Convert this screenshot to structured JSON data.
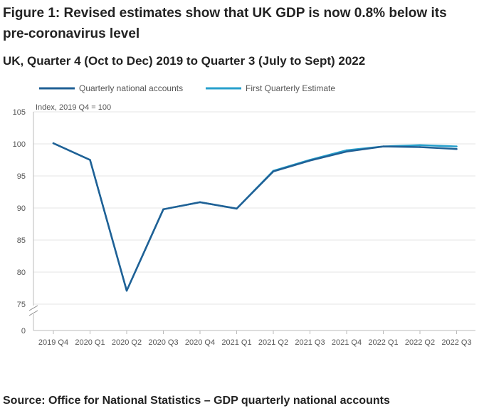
{
  "figure": {
    "title": "Figure 1: Revised estimates show that UK GDP is now 0.8% below its pre-coronavirus level",
    "subtitle": "UK, Quarter 4 (Oct to Dec) 2019 to Quarter 3 (July to Sept) 2022",
    "source": "Source: Office for National Statistics – GDP quarterly national accounts"
  },
  "chart_data": {
    "type": "line",
    "title": "Figure 1: Revised estimates show that UK GDP is now 0.8% below its pre-coronavirus level",
    "subtitle": "UK, Quarter 4 (Oct to Dec) 2019 to Quarter 3 (July to Sept) 2022",
    "ylabel": "Index, 2019 Q4 = 100",
    "xlabel": "",
    "categories": [
      "2019 Q4",
      "2020 Q1",
      "2020 Q2",
      "2020 Q3",
      "2020 Q4",
      "2021 Q1",
      "2021 Q2",
      "2021 Q3",
      "2021 Q4",
      "2022 Q1",
      "2022 Q2",
      "2022 Q3"
    ],
    "ylim": [
      75,
      105
    ],
    "yticks": [
      "105",
      "100",
      "95",
      "90",
      "85",
      "80",
      "75",
      "0"
    ],
    "axis_break": true,
    "grid": true,
    "legend_position": "top-left",
    "series": [
      {
        "name": "Quarterly national accounts",
        "color": "#206095",
        "values": [
          100.1,
          97.5,
          77.1,
          89.8,
          90.9,
          89.9,
          95.7,
          97.4,
          98.8,
          99.6,
          99.5,
          99.2
        ]
      },
      {
        "name": "First Quarterly Estimate",
        "color": "#27a0cc",
        "values": [
          100.1,
          97.5,
          77.1,
          89.8,
          90.9,
          89.9,
          95.8,
          97.5,
          99.0,
          99.6,
          99.8,
          99.6
        ]
      }
    ]
  }
}
